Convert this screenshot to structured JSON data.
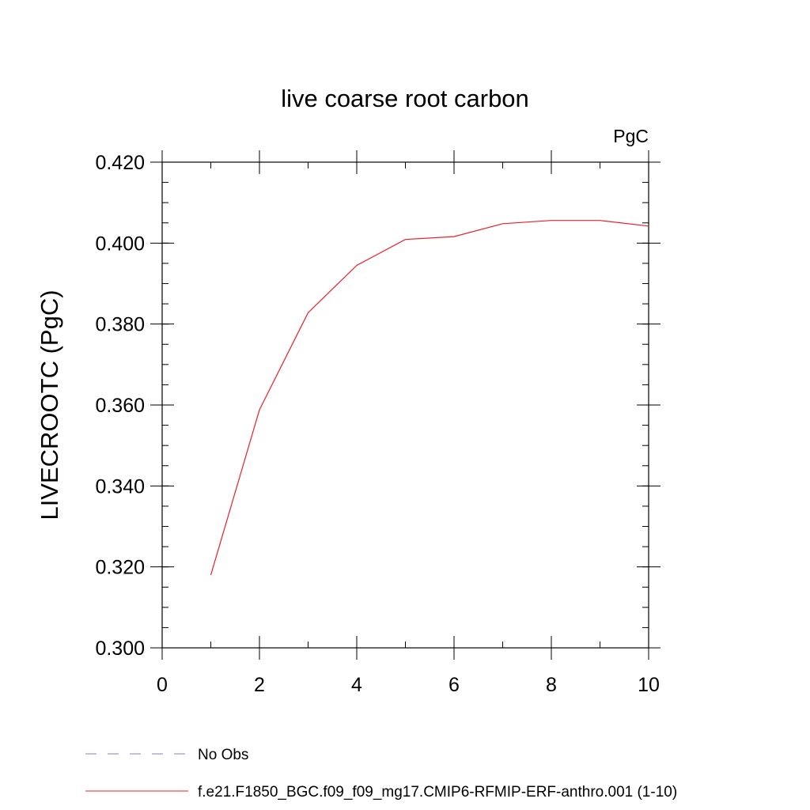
{
  "chart_data": {
    "type": "line",
    "title": "live coarse root carbon",
    "units_label": "PgC",
    "ylabel": "LIVECROOTC  (PgC)",
    "xlabel": "",
    "xlim": [
      0,
      10
    ],
    "ylim": [
      0.3,
      0.42
    ],
    "x_ticks": [
      0,
      2,
      4,
      6,
      8,
      10
    ],
    "x_tick_labels": [
      "0",
      "2",
      "4",
      "6",
      "8",
      "10"
    ],
    "y_ticks": [
      0.3,
      0.32,
      0.34,
      0.36,
      0.38,
      0.4,
      0.42
    ],
    "y_tick_labels": [
      "0.300",
      "0.320",
      "0.340",
      "0.360",
      "0.380",
      "0.400",
      "0.420"
    ],
    "grid": false,
    "series": [
      {
        "name": "f.e21.F1850_BGC.f09_f09_mg17.CMIP6-RFMIP-ERF-anthro.001 (1-10)",
        "color": "#e8202a",
        "style": "solid",
        "x": [
          1,
          2,
          3,
          4,
          5,
          6,
          7,
          8,
          9,
          10
        ],
        "y": [
          0.318,
          0.3588,
          0.3828,
          0.3945,
          0.4009,
          0.4016,
          0.4048,
          0.4056,
          0.4056,
          0.4042
        ]
      }
    ],
    "legend": {
      "placement": "bottom-left",
      "entries": [
        {
          "label": "No Obs",
          "color": "#8a7fc4",
          "style": "dashed"
        },
        {
          "label": "f.e21.F1850_BGC.f09_f09_mg17.CMIP6-RFMIP-ERF-anthro.001 (1-10)",
          "color": "#e8202a",
          "style": "solid"
        }
      ]
    }
  }
}
